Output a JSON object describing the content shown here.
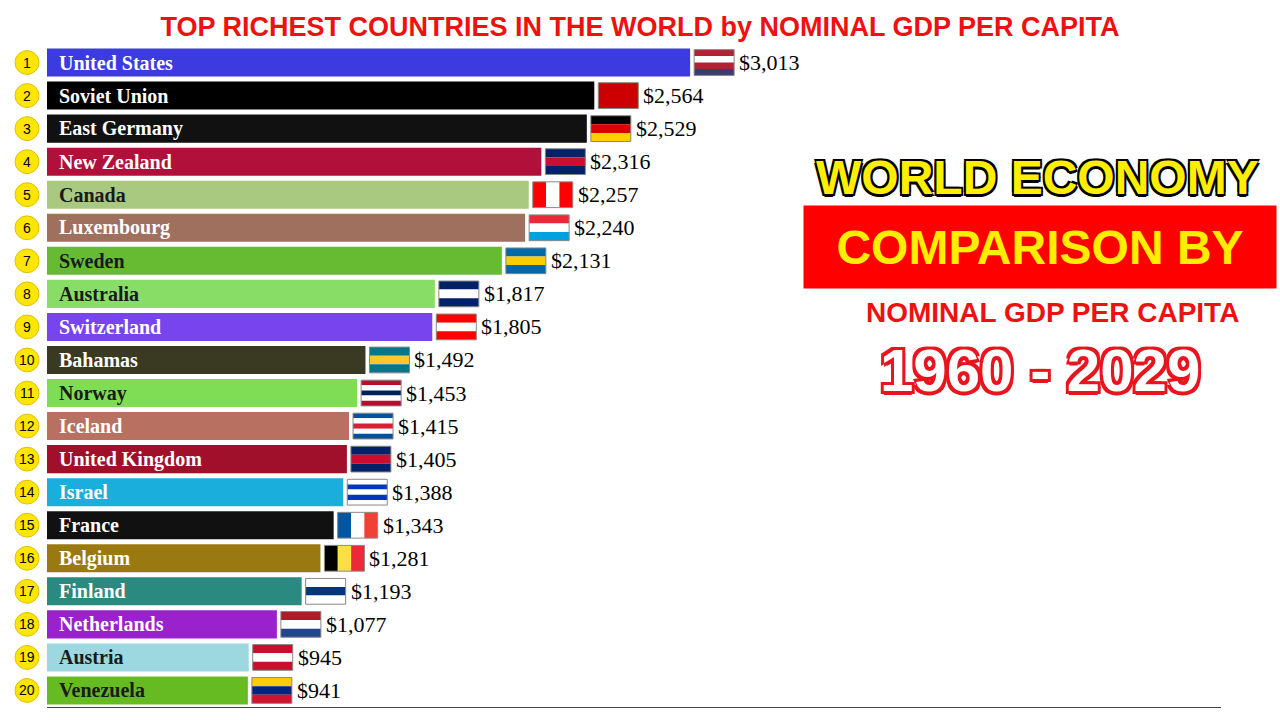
{
  "chart_data": {
    "type": "bar",
    "orientation": "horizontal",
    "title": "TOP RICHEST COUNTRIES IN THE WORLD by NOMINAL GDP PER CAPITA",
    "categories": [
      "United States",
      "Soviet Union",
      "East Germany",
      "New Zealand",
      "Canada",
      "Luxembourg",
      "Sweden",
      "Australia",
      "Switzerland",
      "Bahamas",
      "Norway",
      "Iceland",
      "United Kingdom",
      "Israel",
      "France",
      "Belgium",
      "Finland",
      "Netherlands",
      "Austria",
      "Venezuela"
    ],
    "ranks": [
      1,
      2,
      3,
      4,
      5,
      6,
      7,
      8,
      9,
      10,
      11,
      12,
      13,
      14,
      15,
      16,
      17,
      18,
      19,
      20
    ],
    "values": [
      3013,
      2564,
      2529,
      2316,
      2257,
      2240,
      2131,
      1817,
      1805,
      1492,
      1453,
      1415,
      1405,
      1388,
      1343,
      1281,
      1193,
      1077,
      945,
      941
    ],
    "value_labels": [
      "$3,013",
      "$2,564",
      "$2,529",
      "$2,316",
      "$2,257",
      "$2,240",
      "$2,131",
      "$1,817",
      "$1,805",
      "$1,492",
      "$1,453",
      "$1,415",
      "$1,405",
      "$1,388",
      "$1,343",
      "$1,281",
      "$1,193",
      "$1,077",
      "$945",
      "$941"
    ],
    "colors": [
      "#3b3be0",
      "#000000",
      "#111111",
      "#b0103a",
      "#a8c97f",
      "#a0705f",
      "#66bb33",
      "#88dd66",
      "#7744ee",
      "#3a3a22",
      "#7fdd55",
      "#b87060",
      "#a0102a",
      "#1aaedd",
      "#111111",
      "#9a7a10",
      "#2a8a80",
      "#9922cc",
      "#9dd8e0",
      "#66bb22"
    ],
    "data_labels": true,
    "tick_labels": false,
    "grid": false,
    "xlim": [
      0,
      5500
    ],
    "xticks": [],
    "annotations": [
      "WORLD ECONOMY",
      "COMPARISON BY",
      "NOMINAL GDP PER CAPITA",
      "1960 - 2029"
    ]
  }
}
